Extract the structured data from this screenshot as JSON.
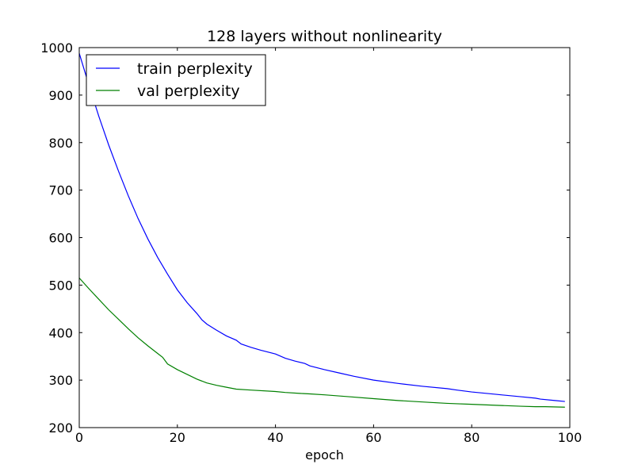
{
  "chart_data": {
    "type": "line",
    "title": "128 layers without nonlinearity",
    "xlabel": "epoch",
    "ylabel": "",
    "xlim": [
      0,
      100
    ],
    "ylim": [
      200,
      1000
    ],
    "xticks": [
      "0",
      "20",
      "40",
      "60",
      "80",
      "100"
    ],
    "yticks": [
      "200",
      "300",
      "400",
      "500",
      "600",
      "700",
      "800",
      "900",
      "1000"
    ],
    "legend_position": "top-left",
    "grid": false,
    "series": [
      {
        "name": "train perplexity",
        "color": "#0000ff",
        "x": [
          0,
          2,
          4,
          6,
          8,
          10,
          12,
          14,
          16,
          18,
          20,
          22,
          24,
          25,
          26,
          28,
          30,
          32,
          33,
          35,
          37,
          40,
          42,
          44,
          46,
          47,
          50,
          53,
          56,
          60,
          65,
          70,
          75,
          77,
          80,
          85,
          90,
          93,
          94,
          97,
          99
        ],
        "y": [
          988,
          920,
          855,
          795,
          740,
          688,
          640,
          597,
          558,
          523,
          490,
          463,
          440,
          427,
          418,
          405,
          393,
          384,
          376,
          369,
          363,
          355,
          346,
          340,
          335,
          330,
          322,
          315,
          308,
          300,
          293,
          287,
          282,
          279,
          275,
          270,
          265,
          262,
          260,
          257,
          255
        ]
      },
      {
        "name": "val perplexity",
        "color": "#008000",
        "x": [
          0,
          2,
          4,
          6,
          8,
          10,
          12,
          14,
          16,
          17,
          18,
          20,
          22,
          24,
          26,
          28,
          30,
          32,
          35,
          40,
          42,
          45,
          47,
          50,
          55,
          60,
          65,
          70,
          75,
          80,
          85,
          90,
          93,
          95,
          99
        ],
        "y": [
          515,
          492,
          470,
          448,
          428,
          408,
          389,
          372,
          356,
          348,
          334,
          322,
          312,
          302,
          294,
          289,
          285,
          281,
          279,
          276,
          274,
          272,
          271,
          269,
          265,
          261,
          257,
          254,
          251,
          249,
          247,
          245,
          244,
          244,
          243
        ]
      }
    ]
  }
}
